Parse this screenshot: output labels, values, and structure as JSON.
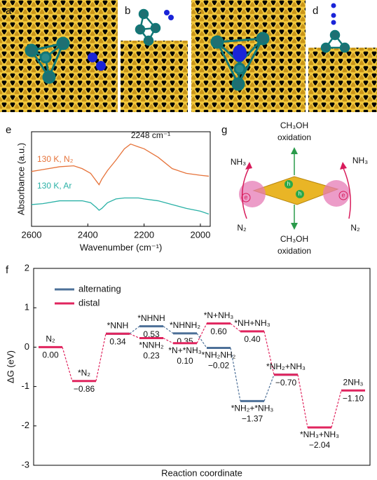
{
  "panel_labels": [
    "a",
    "b",
    "c",
    "d",
    "e",
    "g",
    "f"
  ],
  "schematic": {
    "top_label": [
      "CH₃OH",
      "oxidation"
    ],
    "bottom_label": [
      "CH₃OH",
      "oxidation"
    ],
    "left_product": "NH₃",
    "right_product": "NH₃",
    "left_reactant": "N₂",
    "right_reactant": "N₂",
    "electron": "e",
    "hole": "h"
  },
  "chart_data": [
    {
      "type": "line",
      "xlabel": "Wavenumber (cm⁻¹)",
      "ylabel": "Absorbance (a.u.)",
      "annotation": "2248 cm⁻¹",
      "xlim": [
        2600,
        1965
      ],
      "xticks": [
        2600,
        2400,
        2200,
        2000
      ],
      "ylim": [
        0,
        10
      ],
      "x": [
        2600,
        2560,
        2500,
        2450,
        2420,
        2390,
        2370,
        2360,
        2350,
        2330,
        2300,
        2270,
        2248,
        2220,
        2200,
        2150,
        2100,
        2050,
        2000,
        1970
      ],
      "series": [
        {
          "name": "130 K, N₂",
          "color": "#e6733a",
          "values": [
            5.8,
            6.0,
            6.3,
            6.4,
            6.1,
            5.6,
            4.8,
            4.4,
            5.0,
            5.9,
            7.0,
            8.2,
            8.7,
            8.4,
            8.2,
            7.3,
            6.1,
            5.6,
            5.4,
            5.3
          ]
        },
        {
          "name": "130 K, Ar",
          "color": "#2ab1a6",
          "values": [
            2.3,
            2.4,
            2.7,
            2.7,
            2.7,
            2.5,
            2.0,
            1.7,
            1.9,
            2.5,
            2.9,
            3.0,
            3.0,
            3.0,
            2.9,
            2.7,
            2.3,
            1.9,
            1.6,
            1.3
          ]
        }
      ]
    },
    {
      "type": "line",
      "ylabel": "ΔG (eV)",
      "xlabel": "Reaction coordinate",
      "ylim": [
        -3,
        2
      ],
      "yticks": [
        -3,
        -2,
        -1,
        0,
        1,
        2
      ],
      "legend": "upper left",
      "series": [
        {
          "name": "alternating",
          "color": "#4d7098",
          "labels": [
            null,
            null,
            null,
            "*NHNH",
            "*NHNH₂",
            "*NH₂NH₂",
            "*NH₂+*NH₃",
            null,
            null,
            null
          ],
          "values": [
            null,
            null,
            0.34,
            0.53,
            0.35,
            -0.02,
            -1.37,
            -0.7,
            null,
            null
          ],
          "value_labels": [
            null,
            null,
            null,
            "0.53",
            "0.35",
            "−0.02",
            "−1.37",
            null,
            null,
            null
          ]
        },
        {
          "name": "distal",
          "color": "#e0245e",
          "labels": [
            "N₂",
            "*N₂",
            "*NNH",
            "*NNH₂",
            "*N+*NH₃",
            "*N+NH₃",
            "*NH+NH₃",
            "*NH₂+NH₃",
            "*NH₃+NH₃",
            "2NH₃"
          ],
          "values": [
            0.0,
            -0.86,
            0.34,
            0.23,
            0.1,
            0.6,
            0.4,
            -0.7,
            -2.04,
            -1.1
          ],
          "value_labels": [
            "0.00",
            "−0.86",
            "0.34",
            "0.23",
            "0.10",
            "0.60",
            "0.40",
            "−0.70",
            "−2.04",
            "−1.10"
          ]
        }
      ]
    }
  ]
}
